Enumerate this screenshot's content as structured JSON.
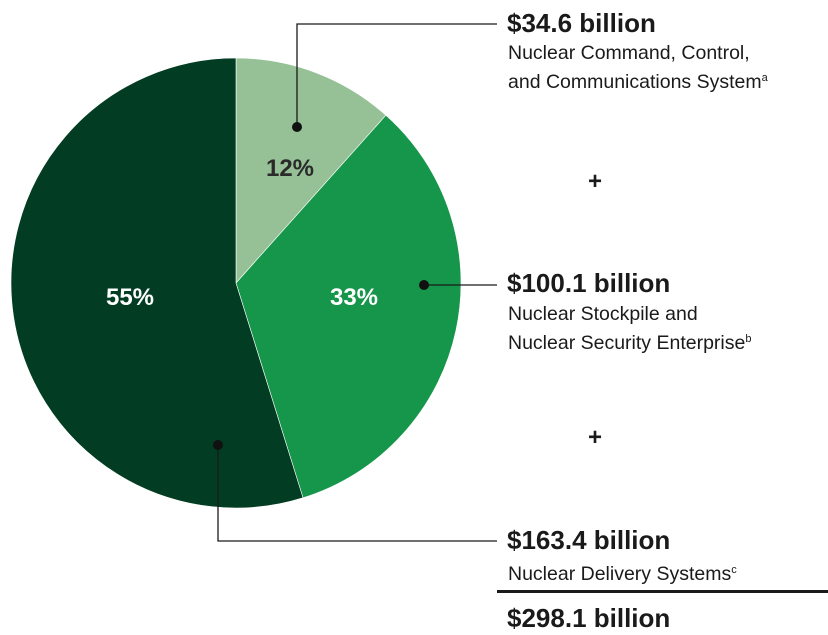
{
  "chart_data": {
    "type": "pie",
    "title": "",
    "slices": [
      {
        "amount": "$34.6 billion",
        "value": 34.6,
        "percent_label": "12%",
        "description_lines": [
          "Nuclear Command, Control,",
          "and Communications System"
        ],
        "footnote": "a",
        "color": "#96c196",
        "label_color": "#2a2a2a"
      },
      {
        "amount": "$100.1 billion",
        "value": 100.1,
        "percent_label": "33%",
        "description_lines": [
          "Nuclear Stockpile and",
          "Nuclear Security Enterprise"
        ],
        "footnote": "b",
        "color": "#16964a",
        "label_color": "#ffffff"
      },
      {
        "amount": "$163.4 billion",
        "value": 163.4,
        "percent_label": "55%",
        "description_lines": [
          "Nuclear Delivery Systems"
        ],
        "footnote": "c",
        "color": "#023d23",
        "label_color": "#ffffff"
      }
    ],
    "operator": "+",
    "total": "$298.1 billion",
    "total_value": 298.1
  }
}
